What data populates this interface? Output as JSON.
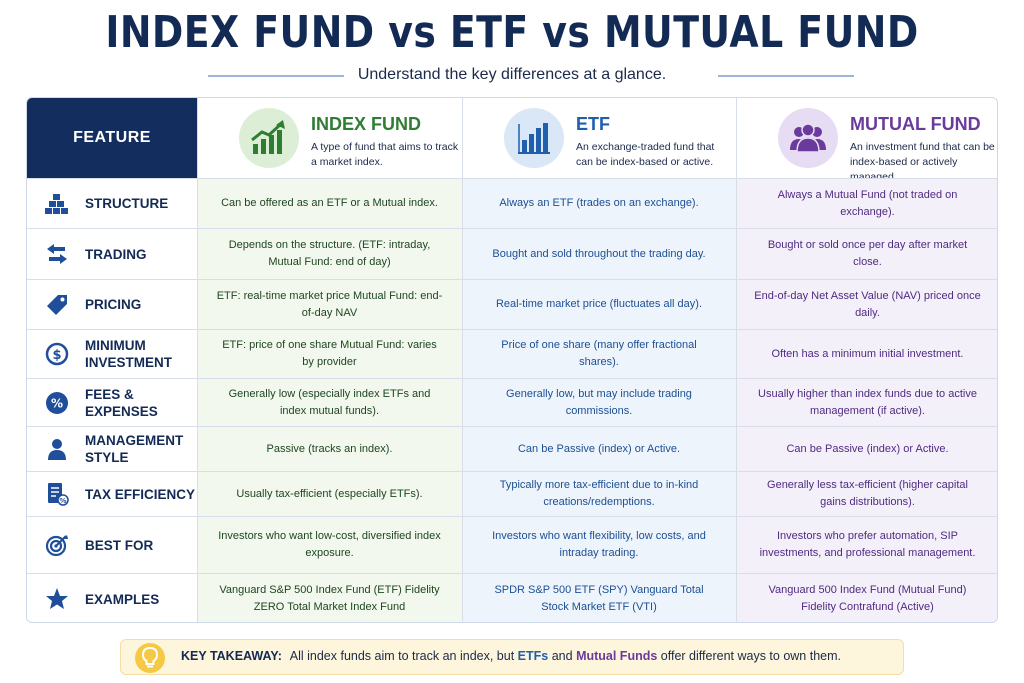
{
  "header": {
    "title": "INDEX FUND vs ETF vs MUTUAL FUND",
    "subtitle": "Understand the key differences at a glance."
  },
  "columns": {
    "feature": "FEATURE",
    "index": {
      "name": "INDEX FUND",
      "desc": "A type of fund that aims to track a market index.",
      "icon": "trend-chart-icon",
      "color": "#2e7d32"
    },
    "etf": {
      "name": "ETF",
      "desc": "An exchange-traded fund that can be index-based or active.",
      "icon": "bar-chart-icon",
      "color": "#1f5fae"
    },
    "mf": {
      "name": "MUTUAL FUND",
      "desc": "An investment fund that can be index-based or actively managed.",
      "icon": "people-icon",
      "color": "#6a3a9c"
    }
  },
  "rows": [
    {
      "feature": "STRUCTURE",
      "icon": "blocks-icon",
      "index": "Can be offered as an ETF or a Mutual index.",
      "etf": "Always an ETF (trades on an exchange).",
      "mf": "Always a Mutual Fund (not traded on exchange)."
    },
    {
      "feature": "TRADING",
      "icon": "exchange-arrows-icon",
      "index": "Depends on the structure. (ETF: intraday, Mutual Fund: end of day)",
      "etf": "Bought and sold throughout the trading day.",
      "mf": "Bought or sold once per day after market close."
    },
    {
      "feature": "PRICING",
      "icon": "price-tag-icon",
      "index": "ETF: real-time market price Mutual Fund: end-of-day NAV",
      "etf": "Real-time market price (fluctuates all day).",
      "mf": "End-of-day Net Asset Value (NAV) priced once daily."
    },
    {
      "feature": "MINIMUM INVESTMENT",
      "icon": "dollar-coin-icon",
      "index": "ETF: price of one share Mutual Fund: varies by provider",
      "etf": "Price of one share (many offer fractional shares).",
      "mf": "Often has a minimum initial investment."
    },
    {
      "feature": "FEES & EXPENSES",
      "icon": "percent-icon",
      "index": "Generally low (especially index ETFs and index mutual funds).",
      "etf": "Generally low, but may include trading commissions.",
      "mf": "Usually higher than index funds due to active management (if active)."
    },
    {
      "feature": "MANAGEMENT STYLE",
      "icon": "person-icon",
      "index": "Passive (tracks an index).",
      "etf": "Can be Passive (index) or Active.",
      "mf": "Can be Passive (index) or Active."
    },
    {
      "feature": "TAX EFFICIENCY",
      "icon": "tax-document-icon",
      "index": "Usually tax-efficient (especially ETFs).",
      "etf": "Typically more tax-efficient due to in-kind creations/redemptions.",
      "mf": "Generally less tax-efficient (higher capital gains distributions)."
    },
    {
      "feature": "BEST FOR",
      "icon": "target-icon",
      "index": "Investors who want low-cost, diversified index exposure.",
      "etf": "Investors who want flexibility, low costs, and intraday trading.",
      "mf": "Investors who prefer automation, SIP investments, and professional management."
    },
    {
      "feature": "EXAMPLES",
      "icon": "star-icon",
      "index": "Vanguard S&P 500 Index Fund (ETF) Fidelity ZERO Total Market Index Fund",
      "etf": "SPDR S&P 500 ETF (SPY) Vanguard Total Stock Market ETF (VTI)",
      "mf": "Vanguard 500 Index Fund (Mutual Fund) Fidelity Contrafund (Active)"
    }
  ],
  "takeaway": {
    "label": "KEY TAKEAWAY:",
    "text_a": "All index funds aim to track an index, but",
    "etfs": "ETFs",
    "and": "and",
    "mfs": "Mutual Funds",
    "text_b": "offer different ways to own them.",
    "icon": "lightbulb-icon"
  }
}
